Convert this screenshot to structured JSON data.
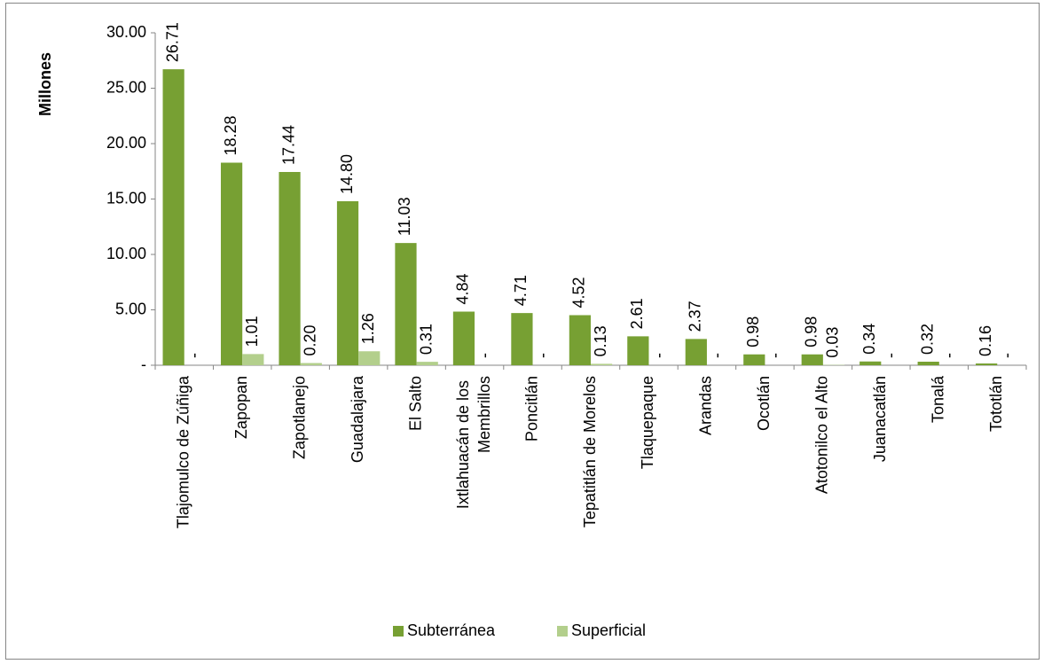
{
  "chart_data": {
    "type": "bar",
    "y_axis_label": "Millones",
    "categories": [
      "Tlajomulco de Zúñiga",
      "Zapopan",
      "Zapotlanejo",
      "Guadalajara",
      "El Salto",
      "Ixtlahuacán de los Membrillos",
      "Poncitlán",
      "Tepatitlán de Morelos",
      "Tlaquepaque",
      "Arandas",
      "Ocotlán",
      "Atotonilco el Alto",
      "Juanacatlán",
      "Tonalá",
      "Tototlán"
    ],
    "series": [
      {
        "name": "Subterránea",
        "color": "#77a033",
        "values": [
          26.71,
          18.28,
          17.44,
          14.8,
          11.03,
          4.84,
          4.71,
          4.52,
          2.61,
          2.37,
          0.98,
          0.98,
          0.34,
          0.32,
          0.16
        ],
        "value_labels": [
          "26.71",
          "18.28",
          "17.44",
          "14.80",
          "11.03",
          "4.84",
          "4.71",
          "4.52",
          "2.61",
          "2.37",
          "0.98",
          "0.98",
          "0.34",
          "0.32",
          "0.16"
        ]
      },
      {
        "name": "Superficial",
        "color": "#b3cf8c",
        "values": [
          0,
          1.01,
          0.2,
          1.26,
          0.31,
          0,
          0,
          0.13,
          0,
          0,
          0,
          0.03,
          0,
          0,
          0
        ],
        "value_labels": [
          "-",
          "1.01",
          "0.20",
          "1.26",
          "0.31",
          "-",
          "-",
          "0.13",
          "-",
          "-",
          "-",
          "0.03",
          "-",
          "-",
          "-"
        ]
      }
    ],
    "ylim": [
      0,
      30
    ],
    "yticks": [
      {
        "value": 0,
        "label": "-"
      },
      {
        "value": 5,
        "label": "5.00"
      },
      {
        "value": 10,
        "label": "10.00"
      },
      {
        "value": 15,
        "label": "15.00"
      },
      {
        "value": 20,
        "label": "20.00"
      },
      {
        "value": 25,
        "label": "25.00"
      },
      {
        "value": 30,
        "label": "30.00"
      }
    ],
    "grid": false,
    "legend": "bottom"
  }
}
